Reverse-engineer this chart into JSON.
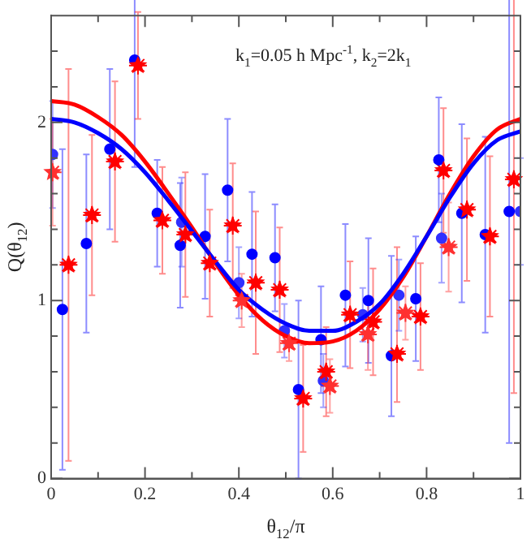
{
  "chart_data": {
    "type": "scatter",
    "xlabel": "θ$_{12}$/π",
    "ylabel": "Q(θ$_{12}$)",
    "annotations": [
      "k$_{1}$=0.05 h Mpc$^{-1}$, k$_{2}$=2k$_{1}$"
    ],
    "xlim": [
      0,
      1
    ],
    "xticks": [
      0,
      {
        "value": 0.1,
        "label": null
      },
      0.2,
      {
        "value": 0.3,
        "label": null
      },
      0.4,
      {
        "value": 0.5,
        "label": null
      },
      0.6,
      {
        "value": 0.7,
        "label": null
      },
      0.8,
      {
        "value": 0.9,
        "label": null
      },
      1
    ],
    "ylim": [
      0,
      2.6
    ],
    "yticks": [
      0,
      {
        "value": 0.2,
        "label": null
      },
      {
        "value": 0.4,
        "label": null
      },
      {
        "value": 0.6,
        "label": null
      },
      {
        "value": 0.8,
        "label": null
      },
      1,
      {
        "value": 1.2,
        "label": null
      },
      {
        "value": 1.4,
        "label": null
      },
      {
        "value": 1.6,
        "label": null
      },
      {
        "value": 1.8,
        "label": null
      },
      2,
      {
        "value": 2.2,
        "label": null
      },
      {
        "value": 2.4,
        "label": null
      }
    ],
    "grid": false,
    "legend": false,
    "series": [
      {
        "marker": "circle",
        "color": "#0000ff",
        "x": [
          0.024,
          0.075,
          0.125,
          0.178,
          0.226,
          0.275,
          0.328,
          0.376,
          0.428,
          0.477,
          0.527,
          0.575,
          0.627,
          0.676,
          0.725,
          0.777,
          0.826,
          0.875,
          0.925,
          0.976
        ],
        "values": [
          0.95,
          1.32,
          1.85,
          2.35,
          1.49,
          1.31,
          1.36,
          1.62,
          1.26,
          1.24,
          0.5,
          0.78,
          1.03,
          1.0,
          0.69,
          1.01,
          1.79,
          1.49,
          1.37,
          1.5
        ],
        "errors": [
          0.9,
          0.5,
          0.45,
          0.6,
          0.3,
          0.35,
          0.35,
          0.4,
          0.35,
          0.3,
          0.5,
          0.3,
          0.4,
          0.35,
          [
            0.35,
            1.25
          ],
          0.35,
          0.35,
          0.5,
          0.55,
          1.3
        ]
      },
      {
        "marker": "star",
        "color": "#ff0000",
        "x": [
          0.037,
          0.087,
          0.136,
          0.185,
          0.237,
          0.286,
          0.338,
          0.387,
          0.436,
          0.487,
          0.537,
          0.586,
          0.637,
          0.686,
          0.737,
          0.787,
          0.836,
          0.886,
          0.935,
          0.986
        ],
        "values": [
          1.2,
          1.48,
          1.78,
          2.32,
          1.45,
          1.37,
          1.21,
          1.42,
          1.1,
          1.06,
          0.45,
          0.6,
          0.92,
          0.88,
          0.7,
          0.91,
          1.73,
          1.51,
          1.36,
          1.68
        ],
        "errors": [
          1.1,
          0.45,
          0.45,
          0.3,
          0.3,
          0.35,
          0.3,
          0.35,
          0.4,
          0.35,
          0.3,
          0.25,
          0.3,
          0.3,
          [
            0.43,
            1.3
          ],
          0.3,
          0.35,
          0.4,
          0.45,
          1.2
        ]
      },
      {
        "marker": "circle",
        "color": "#3030ff",
        "x": [
          0.003,
          0.278,
          0.4,
          0.497,
          0.58,
          0.664,
          0.741,
          0.832,
          1.0
        ],
        "values": [
          1.82,
          1.44,
          1.1,
          0.83,
          0.55,
          0.92,
          1.03,
          1.35,
          1.5
        ],
        "errors": [
          0.3,
          0.25,
          0.2,
          0.15,
          0.15,
          0.15,
          0.2,
          0.25,
          0.3
        ]
      },
      {
        "marker": "star",
        "color": "#ff3030",
        "x": [
          0.003,
          0.406,
          0.507,
          0.594,
          0.675,
          0.755,
          0.847
        ],
        "values": [
          1.72,
          1.0,
          0.76,
          0.52,
          0.81,
          0.93,
          1.3
        ],
        "errors": [
          0.3,
          0.15,
          0.1,
          0.15,
          0.2,
          0.15,
          0.25
        ]
      },
      {
        "type": "line",
        "color": "#0000ff",
        "x": [
          0,
          0.05,
          0.1,
          0.15,
          0.2,
          0.25,
          0.3,
          0.35,
          0.4,
          0.45,
          0.5,
          0.55,
          0.6,
          0.65,
          0.7,
          0.75,
          0.8,
          0.85,
          0.9,
          0.95,
          1
        ],
        "values": [
          2.02,
          2.0,
          1.94,
          1.85,
          1.72,
          1.56,
          1.39,
          1.22,
          1.06,
          0.95,
          0.87,
          0.83,
          0.83,
          0.88,
          0.98,
          1.15,
          1.36,
          1.58,
          1.77,
          1.9,
          1.95
        ]
      },
      {
        "type": "line",
        "color": "#ff0000",
        "x": [
          0,
          0.05,
          0.1,
          0.15,
          0.2,
          0.25,
          0.3,
          0.35,
          0.4,
          0.45,
          0.5,
          0.55,
          0.6,
          0.65,
          0.7,
          0.75,
          0.8,
          0.85,
          0.9,
          0.95,
          1
        ],
        "values": [
          2.12,
          2.1,
          2.03,
          1.93,
          1.78,
          1.6,
          1.41,
          1.21,
          1.03,
          0.89,
          0.8,
          0.76,
          0.77,
          0.83,
          0.95,
          1.13,
          1.36,
          1.6,
          1.81,
          1.96,
          2.02
        ]
      }
    ]
  }
}
